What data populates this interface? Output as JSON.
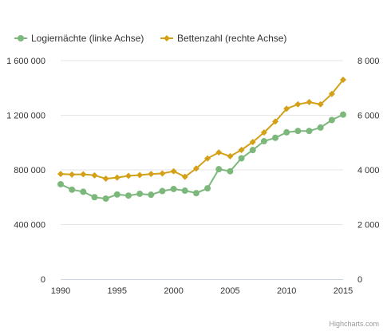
{
  "chart_data": {
    "type": "line",
    "title": "",
    "xlabel": "",
    "ylabel": "",
    "x": [
      1990,
      1991,
      1992,
      1993,
      1994,
      1995,
      1996,
      1997,
      1998,
      1999,
      2000,
      2001,
      2002,
      2003,
      2004,
      2005,
      2006,
      2007,
      2008,
      2009,
      2010,
      2011,
      2012,
      2013,
      2014,
      2015
    ],
    "xticks": [
      "1990",
      "1995",
      "2000",
      "2005",
      "2010",
      "2015"
    ],
    "xlim": [
      1990,
      2015
    ],
    "y_left": {
      "lim": [
        0,
        1600000
      ],
      "ticks": [
        0,
        400000,
        800000,
        1200000,
        1600000
      ],
      "tick_labels": [
        "0",
        "400 000",
        "800 000",
        "1 200 000",
        "1 600 000"
      ]
    },
    "y_right": {
      "lim": [
        0,
        8000
      ],
      "ticks": [
        0,
        2000,
        4000,
        6000,
        8000
      ],
      "tick_labels": [
        "0",
        "2 000",
        "4 000",
        "6 000",
        "8 000"
      ]
    },
    "grid": true,
    "legend_position": "top-left",
    "series": [
      {
        "name": "Logiernächte (linke Achse)",
        "axis": "left",
        "color": "#7cb87c",
        "marker": "circle",
        "values": [
          695000,
          655000,
          640000,
          600000,
          590000,
          620000,
          612000,
          625000,
          618000,
          645000,
          660000,
          648000,
          630000,
          665000,
          805000,
          790000,
          885000,
          945000,
          1010000,
          1035000,
          1075000,
          1085000,
          1085000,
          1110000,
          1165000,
          1205000
        ]
      },
      {
        "name": "Bettenzahl (rechte Achse)",
        "axis": "right",
        "color": "#d4a017",
        "marker": "diamond",
        "values": [
          3850,
          3830,
          3840,
          3800,
          3680,
          3720,
          3780,
          3810,
          3850,
          3870,
          3950,
          3750,
          4050,
          4420,
          4640,
          4500,
          4730,
          5020,
          5370,
          5770,
          6240,
          6400,
          6480,
          6400,
          6780,
          7300
        ]
      }
    ]
  },
  "credit": "Highcharts.com"
}
